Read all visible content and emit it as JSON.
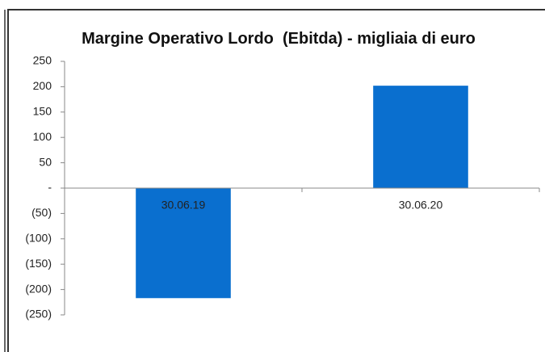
{
  "chart_data": {
    "type": "bar",
    "title": "Margine Operativo Lordo  (Ebitda) - migliaia di euro",
    "categories": [
      "30.06.19",
      "30.06.20"
    ],
    "values": [
      -217,
      202
    ],
    "color": "#0a6fcf",
    "ylim": [
      -250,
      250
    ],
    "yticks": [
      250,
      200,
      150,
      100,
      50,
      {
        "value": 0,
        "label": "-"
      },
      {
        "value": -50,
        "label": "(50)"
      },
      {
        "value": -100,
        "label": "(100)"
      },
      {
        "value": -150,
        "label": "(150)"
      },
      {
        "value": -200,
        "label": "(200)"
      },
      {
        "value": -250,
        "label": "(250)"
      }
    ],
    "grid": false
  }
}
